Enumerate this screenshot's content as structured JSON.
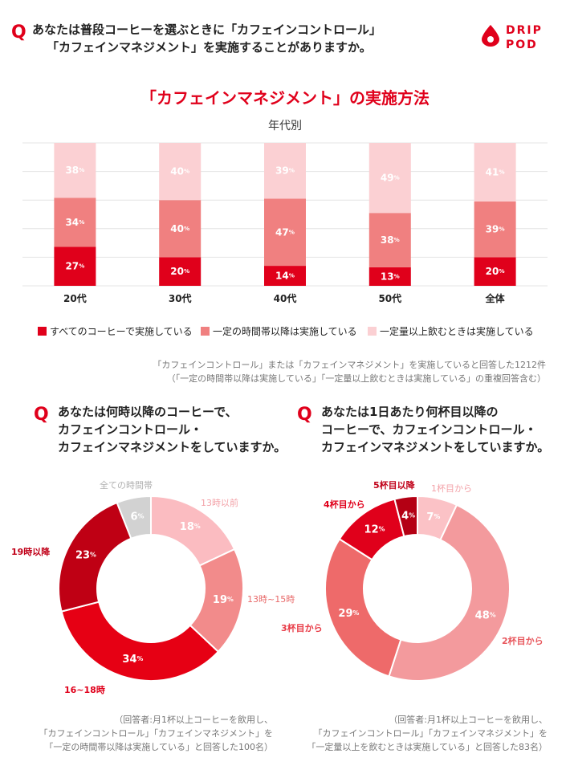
{
  "brand": {
    "line1": "DRIP",
    "line2": "POD"
  },
  "main_question": {
    "q": "Q",
    "line1": "あなたは普段コーヒーを選ぶときに「カフェインコントロール」",
    "line2": "「カフェインマネジメント」を実施することがありますか。"
  },
  "colors": {
    "dark": "#e0001b",
    "mid": "#f08080",
    "light": "#fbd0d3",
    "deep": "#c00018",
    "gray": "#d4d4d4",
    "accent": "#e0001b"
  },
  "chart_data": [
    {
      "type": "bar",
      "stacked": true,
      "title": "「カフェインマネジメント」の実施方法",
      "subtitle": "年代別",
      "categories": [
        "20代",
        "30代",
        "40代",
        "50代",
        "全体"
      ],
      "series": [
        {
          "name": "すべてのコーヒーで実施している",
          "values": [
            27,
            20,
            14,
            13,
            20
          ]
        },
        {
          "name": "一定の時間帯以降は実施している",
          "values": [
            34,
            40,
            47,
            38,
            39
          ]
        },
        {
          "name": "一定量以上飲むときは実施している",
          "values": [
            38,
            40,
            39,
            49,
            41
          ]
        }
      ],
      "unit": "%",
      "legend": "bottom",
      "grid": true,
      "note": {
        "line1": "「カフェインコントロール」または「カフェインマネジメント」を実施していると回答した1212件",
        "line2": "（「一定の時間帯以降は実施している」「一定量以上飲むときは実施している」の重複回答含む）"
      }
    },
    {
      "type": "pie",
      "donut": true,
      "question": {
        "q": "Q",
        "line1": "あなたは何時以降のコーヒーで、",
        "line2": "カフェインコントロール・",
        "line3": "カフェインマネジメントをしていますか。"
      },
      "slices": [
        {
          "label": "13時以前",
          "value": 18
        },
        {
          "label": "13時~15時",
          "value": 19
        },
        {
          "label": "16~18時",
          "value": 34
        },
        {
          "label": "19時以降",
          "value": 23
        },
        {
          "label": "全ての時間帯",
          "value": 6
        }
      ],
      "unit": "%",
      "note": {
        "line1": "（回答者:月1杯以上コーヒーを飲用し、",
        "line2": "「カフェインコントロール」「カフェインマネジメント」を",
        "line3": "「一定の時間帯以降は実施している」と回答した100名）"
      }
    },
    {
      "type": "pie",
      "donut": true,
      "question": {
        "q": "Q",
        "line1": "あなたは1日あたり何杯目以降の",
        "line2": "コーヒーで、カフェインコントロール・",
        "line3": "カフェインマネジメントをしていますか。"
      },
      "slices": [
        {
          "label": "1杯目から",
          "value": 7
        },
        {
          "label": "2杯目から",
          "value": 48
        },
        {
          "label": "3杯目から",
          "value": 29
        },
        {
          "label": "4杯目から",
          "value": 12
        },
        {
          "label": "5杯目以降",
          "value": 4
        }
      ],
      "unit": "%",
      "note": {
        "line1": "（回答者:月1杯以上コーヒーを飲用し、",
        "line2": "「カフェインコントロール」「カフェインマネジメント」を",
        "line3": "「一定量以上を飲むときは実施している」と回答した83名）"
      }
    }
  ]
}
